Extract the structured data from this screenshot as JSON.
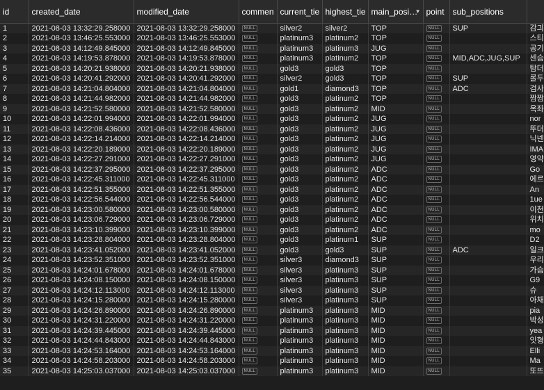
{
  "columns": [
    "id",
    "created_date",
    "modified_date",
    "comment",
    "current_tier",
    "highest_tier",
    "main_posi…",
    "point",
    "sub_positions",
    ""
  ],
  "null_label": "NULL",
  "rows": [
    [
      "1",
      "2021-08-03 13:32:29.258000",
      "2021-08-03 13:32:29.258000",
      "silver2",
      "silver2",
      "TOP",
      "SUP",
      "감긔"
    ],
    [
      "2",
      "2021-08-03 13:46:25.553000",
      "2021-08-03 13:46:25.553000",
      "platinum3",
      "platinum2",
      "TOP",
      "",
      "스티"
    ],
    [
      "3",
      "2021-08-03 14:12:49.845000",
      "2021-08-03 14:12:49.845000",
      "platinum3",
      "platinum3",
      "JUG",
      "",
      "공기"
    ],
    [
      "4",
      "2021-08-03 14:19:53.878000",
      "2021-08-03 14:19:53.878000",
      "platinum3",
      "platinum2",
      "TOP",
      "MID,ADC,JUG,SUP",
      "센슴"
    ],
    [
      "5",
      "2021-08-03 14:20:21.938000",
      "2021-08-03 14:20:21.938000",
      "gold3",
      "gold3",
      "TOP",
      "",
      "탐더"
    ],
    [
      "6",
      "2021-08-03 14:20:41.292000",
      "2021-08-03 14:20:41.292000",
      "silver2",
      "gold3",
      "TOP",
      "SUP",
      "롤두"
    ],
    [
      "7",
      "2021-08-03 14:21:04.804000",
      "2021-08-03 14:21:04.804000",
      "gold1",
      "diamond3",
      "TOP",
      "ADC",
      "검사"
    ],
    [
      "8",
      "2021-08-03 14:21:44.982000",
      "2021-08-03 14:21:44.982000",
      "gold3",
      "platinum2",
      "TOP",
      "",
      "짬짬"
    ],
    [
      "9",
      "2021-08-03 14:21:52.580000",
      "2021-08-03 14:21:52.580000",
      "gold3",
      "platinum2",
      "MID",
      "",
      "옥좌"
    ],
    [
      "10",
      "2021-08-03 14:22:01.994000",
      "2021-08-03 14:22:01.994000",
      "gold3",
      "platinum2",
      "JUG",
      "",
      "nor"
    ],
    [
      "11",
      "2021-08-03 14:22:08.436000",
      "2021-08-03 14:22:08.436000",
      "gold3",
      "platinum2",
      "JUG",
      "",
      "뚜더"
    ],
    [
      "12",
      "2021-08-03 14:22:14.214000",
      "2021-08-03 14:22:14.214000",
      "gold3",
      "platinum2",
      "JUG",
      "",
      "닉넨"
    ],
    [
      "13",
      "2021-08-03 14:22:20.189000",
      "2021-08-03 14:22:20.189000",
      "gold3",
      "platinum2",
      "JUG",
      "",
      "IMA"
    ],
    [
      "14",
      "2021-08-03 14:22:27.291000",
      "2021-08-03 14:22:27.291000",
      "gold3",
      "platinum2",
      "JUG",
      "",
      "영약"
    ],
    [
      "15",
      "2021-08-03 14:22:37.295000",
      "2021-08-03 14:22:37.295000",
      "gold3",
      "platinum2",
      "ADC",
      "",
      "Go"
    ],
    [
      "16",
      "2021-08-03 14:22:45.311000",
      "2021-08-03 14:22:45.311000",
      "gold3",
      "platinum2",
      "ADC",
      "",
      "에르"
    ],
    [
      "17",
      "2021-08-03 14:22:51.355000",
      "2021-08-03 14:22:51.355000",
      "gold3",
      "platinum2",
      "ADC",
      "",
      "An"
    ],
    [
      "18",
      "2021-08-03 14:22:56.544000",
      "2021-08-03 14:22:56.544000",
      "gold3",
      "platinum2",
      "ADC",
      "",
      "1ue"
    ],
    [
      "19",
      "2021-08-03 14:23:00.580000",
      "2021-08-03 14:23:00.580000",
      "gold3",
      "platinum2",
      "ADC",
      "",
      "이천"
    ],
    [
      "20",
      "2021-08-03 14:23:06.729000",
      "2021-08-03 14:23:06.729000",
      "gold3",
      "platinum2",
      "ADC",
      "",
      "위치"
    ],
    [
      "21",
      "2021-08-03 14:23:10.399000",
      "2021-08-03 14:23:10.399000",
      "gold3",
      "platinum2",
      "ADC",
      "",
      "mo"
    ],
    [
      "22",
      "2021-08-03 14:23:28.804000",
      "2021-08-03 14:23:28.804000",
      "gold3",
      "platinum1",
      "SUP",
      "",
      "D2"
    ],
    [
      "23",
      "2021-08-03 14:23:41.052000",
      "2021-08-03 14:23:41.052000",
      "gold3",
      "gold3",
      "SUP",
      "ADC",
      "일크"
    ],
    [
      "24",
      "2021-08-03 14:23:52.351000",
      "2021-08-03 14:23:52.351000",
      "silver3",
      "diamond3",
      "SUP",
      "",
      "우리"
    ],
    [
      "25",
      "2021-08-03 14:24:01.678000",
      "2021-08-03 14:24:01.678000",
      "silver3",
      "platinum3",
      "SUP",
      "",
      "가슴"
    ],
    [
      "26",
      "2021-08-03 14:24:08.150000",
      "2021-08-03 14:24:08.150000",
      "silver3",
      "platinum3",
      "SUP",
      "",
      "G9"
    ],
    [
      "27",
      "2021-08-03 14:24:12.113000",
      "2021-08-03 14:24:12.113000",
      "silver3",
      "platinum3",
      "SUP",
      "",
      "슈"
    ],
    [
      "28",
      "2021-08-03 14:24:15.280000",
      "2021-08-03 14:24:15.280000",
      "silver3",
      "platinum3",
      "SUP",
      "",
      "아채"
    ],
    [
      "29",
      "2021-08-03 14:24:26.890000",
      "2021-08-03 14:24:26.890000",
      "platinum3",
      "platinum3",
      "MID",
      "",
      "pia"
    ],
    [
      "30",
      "2021-08-03 14:24:31.220000",
      "2021-08-03 14:24:31.220000",
      "platinum3",
      "platinum3",
      "MID",
      "",
      "박성"
    ],
    [
      "31",
      "2021-08-03 14:24:39.445000",
      "2021-08-03 14:24:39.445000",
      "platinum3",
      "platinum3",
      "MID",
      "",
      "yea"
    ],
    [
      "32",
      "2021-08-03 14:24:44.843000",
      "2021-08-03 14:24:44.843000",
      "platinum3",
      "platinum3",
      "MID",
      "",
      "잇형"
    ],
    [
      "33",
      "2021-08-03 14:24:53.164000",
      "2021-08-03 14:24:53.164000",
      "platinum3",
      "platinum3",
      "MID",
      "",
      "Elli"
    ],
    [
      "34",
      "2021-08-03 14:24:58.203000",
      "2021-08-03 14:24:58.203000",
      "platinum3",
      "platinum3",
      "MID",
      "",
      "Ma"
    ],
    [
      "35",
      "2021-08-03 14:25:03.037000",
      "2021-08-03 14:25:03.037000",
      "platinum3",
      "platinum3",
      "MID",
      "",
      "또뜨"
    ]
  ]
}
